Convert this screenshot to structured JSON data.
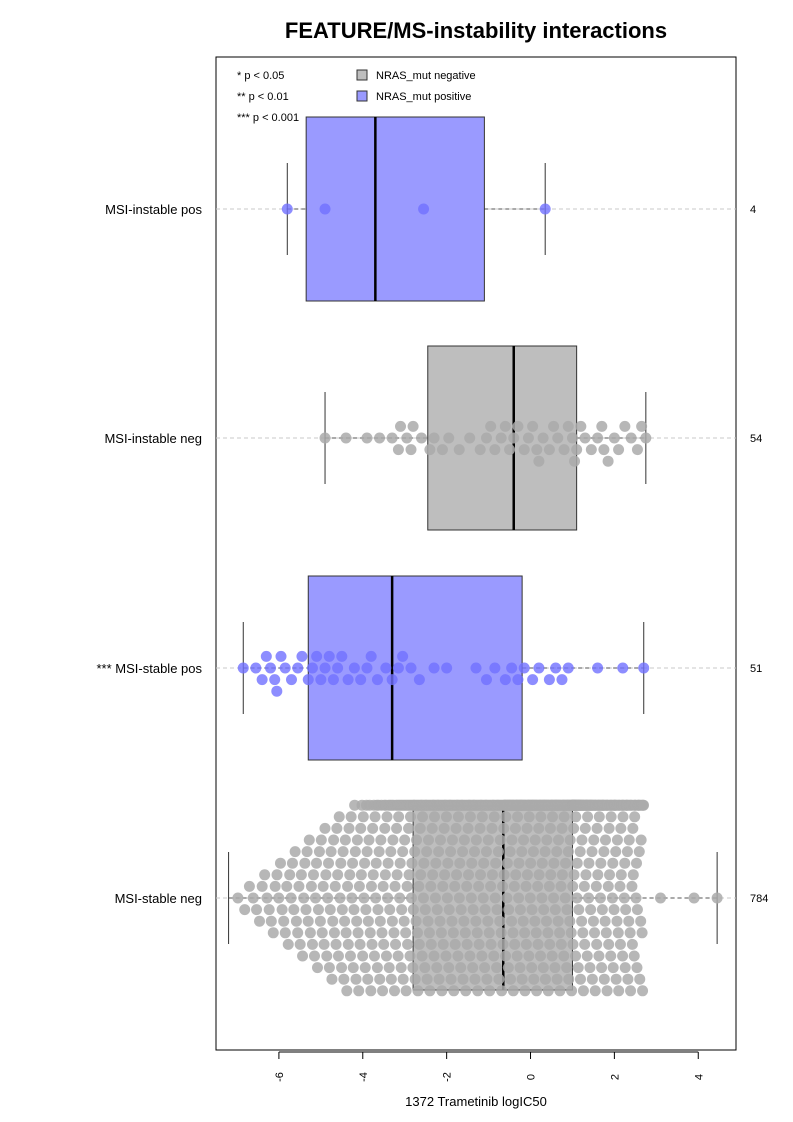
{
  "chart_data": {
    "type": "boxplot",
    "orientation": "horizontal",
    "title": "FEATURE/MS-instability interactions",
    "xlabel": "1372 Trametinib logIC50",
    "xlim": [
      -7.5,
      4.9
    ],
    "x_ticks": [
      -6,
      -4,
      -2,
      0,
      2,
      4
    ],
    "x_tick_labels": [
      "-6",
      "-4",
      "-2",
      "0",
      "2",
      "4"
    ],
    "significance_key": [
      "* p < 0.05",
      "** p < 0.01",
      "*** p < 0.001"
    ],
    "legend": {
      "placement": "top-left",
      "entries": [
        {
          "label": "NRAS_mut negative",
          "color": "#bebebe"
        },
        {
          "label": "NRAS_mut positive",
          "color": "#9a9aff"
        }
      ]
    },
    "colors": {
      "negative_box": "#bebebe",
      "positive_box": "#9a9aff",
      "negative_point": "#aaaaaa",
      "positive_point": "#7070ff"
    },
    "groups": [
      {
        "label": "MSI-instable pos",
        "n_label": "4",
        "nras": "positive",
        "whisker_low": -5.8,
        "q1": -5.35,
        "median": -3.7,
        "q3": -1.1,
        "whisker_high": 0.35,
        "points": [
          -5.8,
          -4.9,
          -2.55,
          0.35
        ]
      },
      {
        "label": "MSI-instable neg",
        "n_label": "54",
        "nras": "negative",
        "whisker_low": -4.9,
        "q1": -2.45,
        "median": -0.4,
        "q3": 1.1,
        "whisker_high": 2.75,
        "points": [
          -4.9,
          -4.4,
          -3.9,
          -3.6,
          -3.3,
          -3.15,
          -3.1,
          -2.95,
          -2.85,
          -2.8,
          -2.6,
          -2.4,
          -2.3,
          -2.1,
          -1.95,
          -1.7,
          -1.45,
          -1.2,
          -1.05,
          -0.95,
          -0.85,
          -0.7,
          -0.6,
          -0.5,
          -0.4,
          -0.3,
          -0.15,
          -0.05,
          0.05,
          0.15,
          0.2,
          0.3,
          0.45,
          0.55,
          0.65,
          0.8,
          0.9,
          1.0,
          1.05,
          1.1,
          1.2,
          1.3,
          1.45,
          1.6,
          1.7,
          1.75,
          1.85,
          2.0,
          2.1,
          2.25,
          2.4,
          2.55,
          2.65,
          2.75
        ]
      },
      {
        "label": "*** MSI-stable pos",
        "n_label": "51",
        "nras": "positive",
        "whisker_low": -6.85,
        "q1": -5.3,
        "median": -3.3,
        "q3": -0.2,
        "whisker_high": 2.7,
        "points": [
          -6.85,
          -6.55,
          -6.4,
          -6.3,
          -6.2,
          -6.1,
          -6.05,
          -5.95,
          -5.85,
          -5.7,
          -5.55,
          -5.45,
          -5.3,
          -5.2,
          -5.1,
          -5.0,
          -4.9,
          -4.8,
          -4.7,
          -4.6,
          -4.5,
          -4.35,
          -4.2,
          -4.05,
          -3.9,
          -3.8,
          -3.65,
          -3.45,
          -3.3,
          -3.15,
          -3.05,
          -2.85,
          -2.65,
          -2.3,
          -2.0,
          -1.3,
          -1.05,
          -0.85,
          -0.6,
          -0.45,
          -0.3,
          -0.15,
          0.05,
          0.2,
          0.45,
          0.6,
          0.75,
          0.9,
          1.6,
          2.2,
          2.7
        ]
      },
      {
        "label": "MSI-stable neg",
        "n_label": "784",
        "nras": "negative",
        "whisker_low": -7.2,
        "q1": -2.8,
        "median": -0.65,
        "q3": 1.0,
        "whisker_high": 4.45,
        "points": []
      }
    ]
  }
}
